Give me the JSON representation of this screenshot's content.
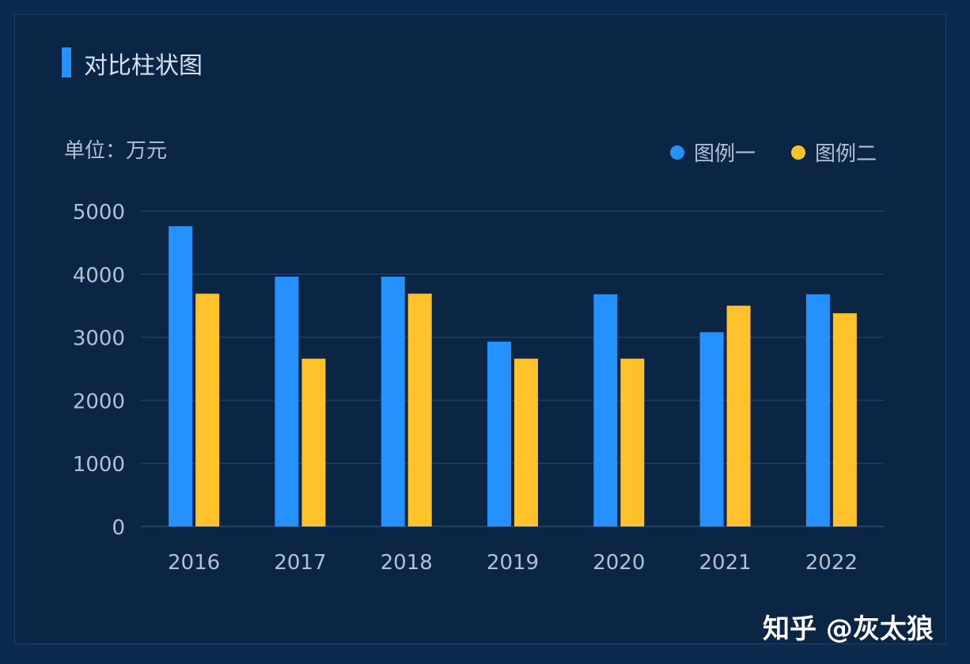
{
  "title": "对比柱状图",
  "watermark": "知乎 @灰太狼",
  "chart_data": {
    "type": "bar",
    "unit_label": "单位：万元",
    "categories": [
      "2016",
      "2017",
      "2018",
      "2019",
      "2020",
      "2021",
      "2022"
    ],
    "series": [
      {
        "name": "图例一",
        "color": "#2491ff",
        "values": [
          4760,
          3960,
          3960,
          2930,
          3680,
          3080,
          3680
        ]
      },
      {
        "name": "图例二",
        "color": "#ffc22a",
        "values": [
          3690,
          2660,
          3690,
          2660,
          2660,
          3500,
          3380
        ]
      }
    ],
    "yticks": [
      "0",
      "1000",
      "2000",
      "3000",
      "4000",
      "5000"
    ],
    "ylim": [
      0,
      5000
    ],
    "grid": true,
    "legend_position": "top-right"
  }
}
